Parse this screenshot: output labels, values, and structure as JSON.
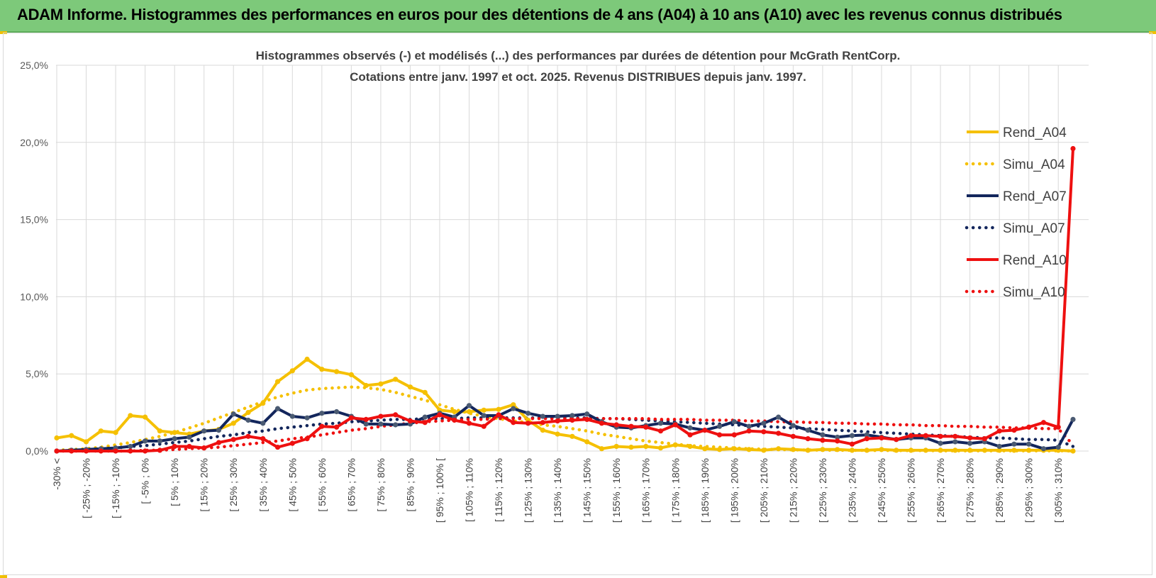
{
  "banner": {
    "title": "ADAM Informe. Histogrammes des performances en euros pour des détentions de 4 ans (A04) à 10 ans (A10) avec les revenus connus distribués"
  },
  "colors": {
    "banner_bg": "#7dc97a",
    "A04": "#f5c000",
    "A07": "#13265c",
    "A07_marker": "#4a5a72",
    "A10": "#ee1010",
    "grid": "#d9d9d9"
  },
  "chart_data": {
    "type": "line",
    "title": "Histogrammes observés (-) et modélisés (...) des performances par durées de détention pour McGrath RentCorp.",
    "subtitle": "Cotations entre janv. 1997 et oct. 2025.  Revenus DISTRIBUES depuis janv. 1997.",
    "ylim": [
      0,
      25
    ],
    "ytick_labels": [
      "0,0%",
      "5,0%",
      "10,0%",
      "15,0%",
      "20,0%",
      "25,0%"
    ],
    "ytick_values": [
      0,
      5,
      10,
      15,
      20,
      25
    ],
    "grid": true,
    "legend_position": "right",
    "x_tick_labels": [
      "-30% <",
      "[ -25% ; -20%",
      "[ -15% ; -10%",
      "[ -5% ; 0%",
      "[ 5% ; 10%",
      "[ 15% ; 20%",
      "[ 25% ; 30%",
      "[ 35% ; 40%",
      "[ 45% ; 50%",
      "[ 55% ; 60%",
      "[ 65% ; 70%",
      "[ 75% ; 80%",
      "[ 85% ; 90%",
      "[ 95% ; 100% [",
      "[ 105% ; 110%",
      "[ 115% ; 120%",
      "[ 125% ; 130%",
      "[ 135% ; 140%",
      "[ 145% ; 150%",
      "[ 155% ; 160%",
      "[ 165% ; 170%",
      "[ 175% ; 180%",
      "[ 185% ; 190%",
      "[ 195% ; 200%",
      "[ 205% ; 210%",
      "[ 215% ; 220%",
      "[ 225% ; 230%",
      "[ 235% ; 240%",
      "[ 245% ; 250%",
      "[ 255% ; 260%",
      "[ 265% ; 270%",
      "[ 275% ; 280%",
      "[ 285% ; 290%",
      "[ 295% ; 300%",
      "[ 305% ; 310%"
    ],
    "x_tick_positions": [
      0,
      2,
      4,
      6,
      8,
      10,
      12,
      14,
      16,
      18,
      20,
      22,
      24,
      26,
      28,
      30,
      32,
      34,
      36,
      38,
      40,
      42,
      44,
      46,
      48,
      50,
      52,
      54,
      56,
      58,
      60,
      62,
      64,
      66,
      68
    ],
    "n_points": 70,
    "series": [
      {
        "name": "Rend_A04",
        "style": "solid",
        "color": "#f5c000",
        "values": [
          0.85,
          1.0,
          0.6,
          1.3,
          1.2,
          2.3,
          2.2,
          1.3,
          1.2,
          1.1,
          1.3,
          1.4,
          1.8,
          2.5,
          3.1,
          4.5,
          5.2,
          5.95,
          5.3,
          5.15,
          4.95,
          4.25,
          4.35,
          4.65,
          4.15,
          3.8,
          2.65,
          2.55,
          2.55,
          2.65,
          2.7,
          3.0,
          2.0,
          1.35,
          1.1,
          0.95,
          0.6,
          0.15,
          0.3,
          0.25,
          0.3,
          0.2,
          0.4,
          0.3,
          0.15,
          0.1,
          0.15,
          0.1,
          0.05,
          0.15,
          0.1,
          0.05,
          0.1,
          0.1,
          0.05,
          0.05,
          0.1,
          0.05,
          0.05,
          0.05,
          0.05,
          0.05,
          0.05,
          0.05,
          0.05,
          0.05,
          0.05,
          0.05,
          0.05,
          0.0
        ]
      },
      {
        "name": "Simu_A04",
        "style": "dotted",
        "color": "#f5c000",
        "values": [
          0.05,
          0.1,
          0.15,
          0.25,
          0.4,
          0.55,
          0.75,
          0.95,
          1.2,
          1.5,
          1.8,
          2.15,
          2.5,
          2.85,
          3.2,
          3.5,
          3.75,
          3.95,
          4.05,
          4.1,
          4.15,
          4.1,
          4.0,
          3.8,
          3.55,
          3.3,
          3.0,
          2.7,
          2.45,
          2.25,
          2.1,
          1.95,
          1.85,
          1.7,
          1.6,
          1.45,
          1.3,
          1.1,
          0.95,
          0.8,
          0.65,
          0.55,
          0.45,
          0.35,
          0.3,
          0.25,
          0.2,
          0.15,
          0.12,
          0.1,
          0.08,
          0.07,
          0.06,
          0.05,
          0.05,
          0.04,
          0.04,
          0.03,
          0.03,
          0.03,
          0.02,
          0.02,
          0.02,
          0.02,
          0.02,
          0.02,
          0.02,
          0.02,
          0.02,
          0.01
        ]
      },
      {
        "name": "Rend_A07",
        "style": "solid",
        "color": "#13265c",
        "values": [
          0.0,
          0.05,
          0.1,
          0.15,
          0.2,
          0.3,
          0.65,
          0.65,
          0.8,
          0.9,
          1.3,
          1.35,
          2.4,
          2.0,
          1.8,
          2.75,
          2.25,
          2.15,
          2.45,
          2.55,
          2.25,
          1.75,
          1.75,
          1.7,
          1.75,
          2.2,
          2.45,
          2.2,
          2.95,
          2.3,
          2.3,
          2.75,
          2.45,
          2.25,
          2.25,
          2.3,
          2.4,
          1.9,
          1.55,
          1.5,
          1.65,
          1.8,
          1.75,
          1.5,
          1.35,
          1.6,
          1.9,
          1.6,
          1.8,
          2.2,
          1.65,
          1.35,
          1.05,
          0.9,
          1.0,
          1.05,
          0.9,
          0.75,
          0.85,
          0.85,
          0.5,
          0.6,
          0.5,
          0.6,
          0.3,
          0.45,
          0.45,
          0.15,
          0.25,
          2.05
        ]
      },
      {
        "name": "Simu_A07",
        "style": "dotted",
        "color": "#13265c",
        "values": [
          0.0,
          0.05,
          0.1,
          0.15,
          0.2,
          0.3,
          0.35,
          0.45,
          0.55,
          0.65,
          0.8,
          0.95,
          1.05,
          1.2,
          1.3,
          1.45,
          1.55,
          1.65,
          1.75,
          1.8,
          1.9,
          1.95,
          2.0,
          2.05,
          2.05,
          2.1,
          2.1,
          2.1,
          2.15,
          2.15,
          2.15,
          2.15,
          2.15,
          2.15,
          2.15,
          2.15,
          2.15,
          2.1,
          2.1,
          2.05,
          2.0,
          1.95,
          1.9,
          1.85,
          1.8,
          1.75,
          1.7,
          1.65,
          1.6,
          1.55,
          1.5,
          1.45,
          1.4,
          1.35,
          1.3,
          1.25,
          1.2,
          1.15,
          1.1,
          1.05,
          1.0,
          0.95,
          0.9,
          0.85,
          0.85,
          0.8,
          0.75,
          0.75,
          0.7,
          0.3
        ]
      },
      {
        "name": "Rend_A10",
        "style": "solid",
        "color": "#ee1010",
        "values": [
          0.0,
          0.0,
          0.0,
          0.0,
          0.0,
          0.0,
          0.0,
          0.05,
          0.3,
          0.3,
          0.2,
          0.55,
          0.75,
          0.95,
          0.8,
          0.25,
          0.5,
          0.8,
          1.6,
          1.55,
          2.15,
          2.05,
          2.25,
          2.35,
          1.95,
          1.85,
          2.35,
          2.0,
          1.8,
          1.6,
          2.35,
          1.85,
          1.8,
          1.85,
          1.95,
          2.0,
          2.05,
          1.8,
          1.7,
          1.6,
          1.55,
          1.3,
          1.7,
          1.05,
          1.35,
          1.05,
          1.05,
          1.3,
          1.25,
          1.15,
          0.95,
          0.8,
          0.7,
          0.65,
          0.45,
          0.8,
          0.85,
          0.75,
          1.0,
          1.0,
          0.95,
          0.95,
          0.85,
          0.8,
          1.3,
          1.35,
          1.55,
          1.85,
          1.55,
          19.6
        ]
      },
      {
        "name": "Simu_A10",
        "style": "dotted",
        "color": "#ee1010",
        "values": [
          0.0,
          0.0,
          0.0,
          0.0,
          0.0,
          0.0,
          0.05,
          0.05,
          0.1,
          0.15,
          0.2,
          0.25,
          0.35,
          0.45,
          0.55,
          0.65,
          0.8,
          0.9,
          1.05,
          1.2,
          1.35,
          1.45,
          1.6,
          1.7,
          1.8,
          1.9,
          1.95,
          2.0,
          2.05,
          2.05,
          2.1,
          2.1,
          2.1,
          2.1,
          2.1,
          2.1,
          2.1,
          2.1,
          2.1,
          2.1,
          2.1,
          2.05,
          2.05,
          2.05,
          2.0,
          2.0,
          2.0,
          1.95,
          1.95,
          1.9,
          1.9,
          1.85,
          1.85,
          1.8,
          1.8,
          1.75,
          1.75,
          1.7,
          1.7,
          1.65,
          1.65,
          1.6,
          1.6,
          1.55,
          1.55,
          1.5,
          1.5,
          1.45,
          1.45,
          0.4
        ]
      }
    ]
  }
}
